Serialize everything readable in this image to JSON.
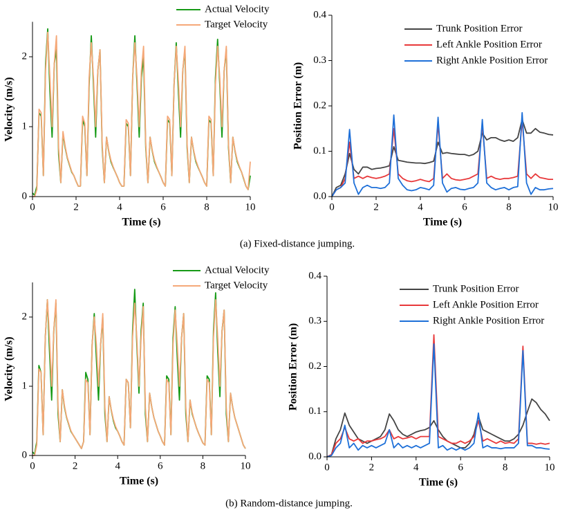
{
  "chart_data": [
    {
      "type": "line",
      "y_label": "Velocity (m/s)",
      "x_label": "Time (s)",
      "legend": "upper right",
      "xlim": [
        0,
        10
      ],
      "xticks": [
        0,
        2,
        4,
        6,
        8,
        10
      ],
      "ylim": [
        0,
        2.5
      ],
      "yticks": [
        0,
        1,
        2
      ],
      "x": [
        0,
        0.1,
        0.2,
        0.3,
        0.4,
        0.5,
        0.6,
        0.7,
        0.8,
        0.9,
        1,
        1.1,
        1.2,
        1.3,
        1.4,
        1.5,
        1.6,
        1.7,
        1.8,
        1.9,
        2,
        2.1,
        2.2,
        2.3,
        2.4,
        2.5,
        2.6,
        2.7,
        2.8,
        2.9,
        3,
        3.1,
        3.2,
        3.3,
        3.4,
        3.5,
        3.6,
        3.7,
        3.8,
        3.9,
        4,
        4.1,
        4.2,
        4.3,
        4.4,
        4.5,
        4.6,
        4.7,
        4.8,
        4.9,
        5,
        5.1,
        5.2,
        5.3,
        5.4,
        5.5,
        5.6,
        5.7,
        5.8,
        5.9,
        6,
        6.1,
        6.2,
        6.3,
        6.4,
        6.5,
        6.6,
        6.7,
        6.8,
        6.9,
        7,
        7.1,
        7.2,
        7.3,
        7.4,
        7.5,
        7.6,
        7.7,
        7.8,
        7.9,
        8,
        8.1,
        8.2,
        8.3,
        8.4,
        8.5,
        8.6,
        8.7,
        8.8,
        8.9,
        9,
        9.1,
        9.2,
        9.3,
        9.4,
        9.5,
        9.6,
        9.7,
        9.8,
        9.9,
        10
      ],
      "series": [
        {
          "name": "Actual Velocity",
          "color": "#169a16",
          "values": [
            0.05,
            0.02,
            0.15,
            1.2,
            1.15,
            0.3,
            1.9,
            2.4,
            1.5,
            0.85,
            1.9,
            2.1,
            0.6,
            0.2,
            0.9,
            0.7,
            0.55,
            0.45,
            0.35,
            0.3,
            0.22,
            0.15,
            0.15,
            1.1,
            1,
            0.3,
            1.6,
            2.3,
            1.6,
            0.85,
            1.8,
            2.1,
            0.7,
            0.2,
            0.85,
            0.65,
            0.5,
            0.42,
            0.35,
            0.28,
            0.2,
            0.15,
            0.15,
            1.05,
            1,
            0.3,
            1.7,
            2.3,
            1.6,
            0.85,
            1.7,
            2,
            0.7,
            0.2,
            0.85,
            0.65,
            0.5,
            0.42,
            0.35,
            0.28,
            0.2,
            0.15,
            1.1,
            1.05,
            0.3,
            1.6,
            2.2,
            1.5,
            0.85,
            1.8,
            2.1,
            0.7,
            0.2,
            0.85,
            0.65,
            0.5,
            0.42,
            0.35,
            0.28,
            0.2,
            0.15,
            1.1,
            1.05,
            0.3,
            1.7,
            2.25,
            1.6,
            0.85,
            1.8,
            2.1,
            0.7,
            0.2,
            0.85,
            0.65,
            0.5,
            0.42,
            0.35,
            0.25,
            0.15,
            0.1,
            0.3
          ]
        },
        {
          "name": "Target Velocity",
          "color": "#f5a878",
          "values": [
            0,
            0,
            0.1,
            1.25,
            1.2,
            0.3,
            1.8,
            2.35,
            1.7,
            1,
            1.9,
            2.3,
            0.7,
            0.2,
            0.93,
            0.72,
            0.56,
            0.46,
            0.36,
            0.3,
            0.22,
            0.15,
            0.15,
            1.15,
            1.05,
            0.3,
            1.7,
            2.2,
            1.7,
            1,
            1.8,
            2.1,
            0.75,
            0.2,
            0.85,
            0.66,
            0.52,
            0.43,
            0.35,
            0.28,
            0.2,
            0.15,
            0.15,
            1.1,
            1.05,
            0.3,
            1.7,
            2.2,
            1.7,
            1,
            1.8,
            2.15,
            0.75,
            0.2,
            0.85,
            0.66,
            0.52,
            0.43,
            0.35,
            0.28,
            0.2,
            0.15,
            1.15,
            1.1,
            0.3,
            1.6,
            2.15,
            1.65,
            1,
            1.8,
            2.15,
            0.75,
            0.2,
            0.85,
            0.66,
            0.52,
            0.43,
            0.35,
            0.28,
            0.2,
            0.15,
            1.15,
            1.1,
            0.3,
            1.6,
            2.15,
            1.7,
            1,
            1.8,
            2.15,
            0.75,
            0.2,
            0.85,
            0.66,
            0.52,
            0.43,
            0.35,
            0.26,
            0.15,
            0.1,
            0.5
          ]
        }
      ]
    },
    {
      "type": "line",
      "y_label": "Position Error (m)",
      "x_label": "Time (s)",
      "legend": "upper right",
      "xlim": [
        0,
        10
      ],
      "xticks": [
        0,
        2,
        4,
        6,
        8,
        10
      ],
      "ylim": [
        0,
        0.4
      ],
      "yticks": [
        {
          "value": 0,
          "label": "0.0"
        },
        0.1,
        0.2,
        0.3,
        0.4
      ],
      "x": [
        0,
        0.2,
        0.4,
        0.6,
        0.8,
        1,
        1.2,
        1.4,
        1.6,
        1.8,
        2,
        2.2,
        2.4,
        2.6,
        2.8,
        3,
        3.2,
        3.4,
        3.6,
        3.8,
        4,
        4.2,
        4.4,
        4.6,
        4.8,
        5,
        5.2,
        5.4,
        5.6,
        5.8,
        6,
        6.2,
        6.4,
        6.6,
        6.8,
        7,
        7.2,
        7.4,
        7.6,
        7.8,
        8,
        8.2,
        8.4,
        8.6,
        8.8,
        9,
        9.2,
        9.4,
        9.6,
        9.8,
        10
      ],
      "series": [
        {
          "name": "Trunk Position Error",
          "color": "#444444",
          "values": [
            0,
            0.02,
            0.025,
            0.05,
            0.095,
            0.06,
            0.05,
            0.065,
            0.065,
            0.06,
            0.062,
            0.063,
            0.065,
            0.068,
            0.11,
            0.08,
            0.078,
            0.076,
            0.075,
            0.074,
            0.074,
            0.073,
            0.075,
            0.078,
            0.12,
            0.095,
            0.097,
            0.095,
            0.094,
            0.093,
            0.093,
            0.09,
            0.093,
            0.1,
            0.14,
            0.125,
            0.13,
            0.13,
            0.125,
            0.122,
            0.125,
            0.122,
            0.13,
            0.17,
            0.14,
            0.14,
            0.15,
            0.142,
            0.14,
            0.137,
            0.136
          ]
        },
        {
          "name": "Left Ankle Position Error",
          "color": "#e8383a",
          "values": [
            0,
            0.015,
            0.02,
            0.04,
            0.12,
            0.04,
            0.045,
            0.04,
            0.045,
            0.042,
            0.04,
            0.042,
            0.045,
            0.05,
            0.15,
            0.05,
            0.04,
            0.035,
            0.033,
            0.035,
            0.038,
            0.035,
            0.033,
            0.04,
            0.16,
            0.04,
            0.05,
            0.04,
            0.037,
            0.036,
            0.038,
            0.04,
            0.045,
            0.05,
            0.16,
            0.04,
            0.045,
            0.04,
            0.038,
            0.04,
            0.04,
            0.042,
            0.045,
            0.17,
            0.05,
            0.04,
            0.05,
            0.042,
            0.04,
            0.038,
            0.038
          ]
        },
        {
          "name": "Right Ankle Position Error",
          "color": "#1d6fd8",
          "values": [
            0,
            0.015,
            0.02,
            0.03,
            0.148,
            0.03,
            0.005,
            0.02,
            0.025,
            0.02,
            0.02,
            0.018,
            0.02,
            0.03,
            0.18,
            0.04,
            0.025,
            0.015,
            0.013,
            0.015,
            0.02,
            0.018,
            0.015,
            0.025,
            0.175,
            0.03,
            0.01,
            0.018,
            0.02,
            0.016,
            0.015,
            0.018,
            0.02,
            0.03,
            0.17,
            0.03,
            0.02,
            0.015,
            0.018,
            0.02,
            0.015,
            0.02,
            0.022,
            0.185,
            0.03,
            0.005,
            0.02,
            0.015,
            0.015,
            0.017,
            0.018
          ]
        }
      ]
    },
    {
      "type": "line",
      "y_label": "Velocity (m/s)",
      "x_label": "Time (s)",
      "legend": "upper right",
      "xlim": [
        0,
        10
      ],
      "xticks": [
        0,
        2,
        4,
        6,
        8,
        10
      ],
      "ylim": [
        0,
        2.5
      ],
      "yticks": [
        0,
        1,
        2
      ],
      "x": [
        0,
        0.1,
        0.2,
        0.3,
        0.4,
        0.5,
        0.6,
        0.7,
        0.8,
        0.9,
        1,
        1.1,
        1.2,
        1.3,
        1.4,
        1.5,
        1.6,
        1.7,
        1.8,
        1.9,
        2,
        2.1,
        2.2,
        2.3,
        2.4,
        2.5,
        2.6,
        2.7,
        2.8,
        2.9,
        3,
        3.1,
        3.2,
        3.3,
        3.4,
        3.5,
        3.6,
        3.7,
        3.8,
        3.9,
        4,
        4.1,
        4.2,
        4.3,
        4.4,
        4.5,
        4.6,
        4.7,
        4.8,
        4.9,
        5,
        5.1,
        5.2,
        5.3,
        5.4,
        5.5,
        5.6,
        5.7,
        5.8,
        5.9,
        6,
        6.1,
        6.2,
        6.3,
        6.4,
        6.5,
        6.6,
        6.7,
        6.8,
        6.9,
        7,
        7.1,
        7.2,
        7.3,
        7.4,
        7.5,
        7.6,
        7.7,
        7.8,
        7.9,
        8,
        8.1,
        8.2,
        8.3,
        8.4,
        8.5,
        8.6,
        8.7,
        8.8,
        8.9,
        9,
        9.1,
        9.2,
        9.3,
        9.4,
        9.5,
        9.6,
        9.7,
        9.8,
        9.9,
        10
      ],
      "series": [
        {
          "name": "Actual Velocity",
          "color": "#169a16",
          "values": [
            0.05,
            0.02,
            0.2,
            1.3,
            1.2,
            0.3,
            1.7,
            2.25,
            1.5,
            0.8,
            1.8,
            2.2,
            0.6,
            0.2,
            0.95,
            0.7,
            0.55,
            0.45,
            0.35,
            0.3,
            0.25,
            0.2,
            0.15,
            0.1,
            0.2,
            1.2,
            1.1,
            0.3,
            1.6,
            2.05,
            1.4,
            0.8,
            1.6,
            2,
            0.6,
            0.2,
            0.85,
            0.65,
            0.5,
            0.4,
            0.35,
            0.28,
            0.2,
            0.15,
            1.1,
            1.05,
            0.4,
            1.8,
            2.4,
            1.6,
            0.9,
            1.8,
            2.2,
            0.6,
            0.2,
            0.9,
            0.7,
            0.55,
            0.45,
            0.35,
            0.28,
            0.2,
            0.15,
            1.15,
            1.1,
            0.3,
            1.7,
            2.15,
            1.4,
            0.8,
            1.7,
            2.05,
            0.6,
            0.2,
            0.8,
            0.6,
            0.5,
            0.4,
            0.32,
            0.25,
            0.18,
            0.15,
            1.15,
            1.1,
            0.3,
            1.8,
            2.35,
            1.5,
            0.85,
            1.8,
            2.1,
            0.6,
            0.2,
            0.9,
            0.7,
            0.55,
            0.45,
            0.35,
            0.25,
            0.15,
            0.1
          ]
        },
        {
          "name": "Target Velocity",
          "color": "#f5a878",
          "values": [
            0,
            0,
            0.15,
            1.25,
            1.2,
            0.3,
            1.7,
            2.25,
            1.7,
            1,
            1.8,
            2.25,
            0.7,
            0.2,
            0.95,
            0.72,
            0.56,
            0.46,
            0.36,
            0.3,
            0.25,
            0.2,
            0.15,
            0.1,
            0.2,
            1.1,
            1.05,
            0.3,
            1.6,
            2,
            1.6,
            1,
            1.6,
            2.05,
            0.7,
            0.2,
            0.85,
            0.66,
            0.52,
            0.42,
            0.35,
            0.28,
            0.2,
            0.15,
            1.1,
            1.05,
            0.4,
            1.7,
            2.2,
            1.7,
            1,
            1.7,
            2.15,
            0.7,
            0.2,
            0.9,
            0.7,
            0.55,
            0.45,
            0.35,
            0.28,
            0.2,
            0.15,
            1.1,
            1.05,
            0.3,
            1.6,
            2.1,
            1.6,
            1,
            1.7,
            2.05,
            0.7,
            0.2,
            0.8,
            0.62,
            0.5,
            0.4,
            0.32,
            0.25,
            0.18,
            0.15,
            1.1,
            1.05,
            0.3,
            1.7,
            2.25,
            1.7,
            1,
            1.8,
            2.1,
            0.7,
            0.2,
            0.9,
            0.7,
            0.55,
            0.45,
            0.35,
            0.25,
            0.15,
            0.1
          ]
        }
      ]
    },
    {
      "type": "line",
      "y_label": "Position Error (m)",
      "x_label": "Time (s)",
      "legend": "upper right",
      "xlim": [
        0,
        10
      ],
      "xticks": [
        0,
        2,
        4,
        6,
        8,
        10
      ],
      "ylim": [
        0,
        0.4
      ],
      "yticks": [
        {
          "value": 0,
          "label": "0.0"
        },
        0.1,
        0.2,
        0.3,
        0.4
      ],
      "x": [
        0,
        0.2,
        0.4,
        0.6,
        0.8,
        1,
        1.2,
        1.4,
        1.6,
        1.8,
        2,
        2.2,
        2.4,
        2.6,
        2.8,
        3,
        3.2,
        3.4,
        3.6,
        3.8,
        4,
        4.2,
        4.4,
        4.6,
        4.8,
        5,
        5.2,
        5.4,
        5.6,
        5.8,
        6,
        6.2,
        6.4,
        6.6,
        6.8,
        7,
        7.2,
        7.4,
        7.6,
        7.8,
        8,
        8.2,
        8.4,
        8.6,
        8.8,
        9,
        9.2,
        9.4,
        9.6,
        9.8,
        10
      ],
      "series": [
        {
          "name": "Trunk Position Error",
          "color": "#444444",
          "values": [
            0,
            0.005,
            0.04,
            0.06,
            0.097,
            0.07,
            0.055,
            0.04,
            0.035,
            0.03,
            0.035,
            0.04,
            0.045,
            0.06,
            0.095,
            0.08,
            0.06,
            0.05,
            0.045,
            0.05,
            0.055,
            0.058,
            0.06,
            0.065,
            0.08,
            0.06,
            0.045,
            0.035,
            0.03,
            0.025,
            0.02,
            0.02,
            0.03,
            0.05,
            0.09,
            0.06,
            0.055,
            0.05,
            0.045,
            0.04,
            0.035,
            0.035,
            0.04,
            0.05,
            0.07,
            0.1,
            0.128,
            0.12,
            0.105,
            0.095,
            0.08
          ]
        },
        {
          "name": "Left Ankle Position Error",
          "color": "#e8383a",
          "values": [
            0,
            0.005,
            0.03,
            0.04,
            0.065,
            0.04,
            0.035,
            0.04,
            0.03,
            0.035,
            0.035,
            0.038,
            0.04,
            0.045,
            0.06,
            0.04,
            0.045,
            0.04,
            0.042,
            0.045,
            0.04,
            0.045,
            0.045,
            0.045,
            0.27,
            0.045,
            0.04,
            0.035,
            0.03,
            0.03,
            0.035,
            0.03,
            0.035,
            0.045,
            0.08,
            0.035,
            0.04,
            0.035,
            0.03,
            0.035,
            0.03,
            0.032,
            0.03,
            0.04,
            0.245,
            0.03,
            0.03,
            0.028,
            0.03,
            0.028,
            0.03
          ]
        },
        {
          "name": "Right Ankle Position Error",
          "color": "#1d6fd8",
          "values": [
            0,
            0.003,
            0.02,
            0.03,
            0.07,
            0.02,
            0.03,
            0.015,
            0.025,
            0.02,
            0.025,
            0.02,
            0.025,
            0.03,
            0.06,
            0.02,
            0.03,
            0.02,
            0.025,
            0.02,
            0.025,
            0.02,
            0.025,
            0.03,
            0.25,
            0.02,
            0.025,
            0.015,
            0.02,
            0.015,
            0.02,
            0.015,
            0.02,
            0.03,
            0.097,
            0.02,
            0.025,
            0.02,
            0.02,
            0.018,
            0.02,
            0.02,
            0.02,
            0.03,
            0.235,
            0.025,
            0.025,
            0.02,
            0.02,
            0.018,
            0.017
          ]
        }
      ]
    }
  ],
  "captions": [
    "(a) Fixed-distance jumping.",
    "(b) Random-distance jumping."
  ]
}
